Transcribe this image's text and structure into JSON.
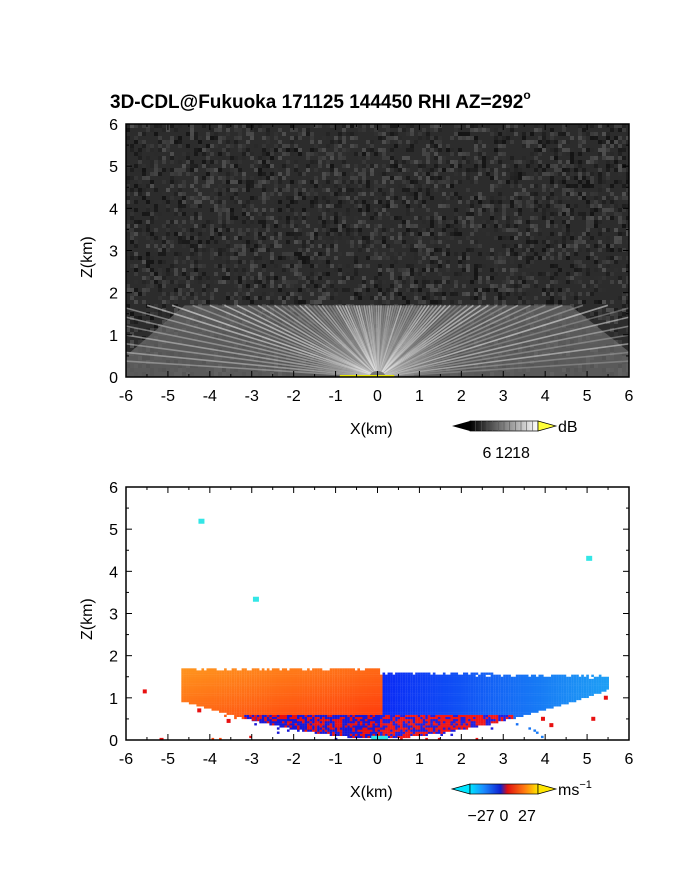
{
  "figure": {
    "title_main": "3D-CDL@Fukuoka 171125 144450 RHI AZ=292",
    "title_sup": "o"
  },
  "chart_data": [
    {
      "type": "heatmap",
      "panel": "reflectivity",
      "xlabel": "X(km)",
      "ylabel": "Z(km)",
      "xlim": [
        -6,
        6
      ],
      "ylim": [
        0,
        6
      ],
      "xticks": [
        "-6",
        "-5",
        "-4",
        "-3",
        "-2",
        "-1",
        "0",
        "1",
        "2",
        "3",
        "4",
        "5",
        "6"
      ],
      "yticks": [
        "0",
        "1",
        "2",
        "3",
        "4",
        "5",
        "6"
      ],
      "background": "noise, dark gray",
      "echo_top_km": 1.7,
      "colorbar": {
        "unit": "dB",
        "ticks": [
          "6",
          "12",
          "18"
        ],
        "range": [
          0,
          24
        ],
        "palette": "grayscale"
      }
    },
    {
      "type": "heatmap",
      "panel": "doppler_velocity",
      "xlabel": "X(km)",
      "ylabel": "Z(km)",
      "xlim": [
        -6,
        6
      ],
      "ylim": [
        0,
        6
      ],
      "xticks": [
        "-6",
        "-5",
        "-4",
        "-3",
        "-2",
        "-1",
        "0",
        "1",
        "2",
        "3",
        "4",
        "5",
        "6"
      ],
      "yticks": [
        "0",
        "1",
        "2",
        "3",
        "4",
        "5",
        "6"
      ],
      "echo_top_km": 1.7,
      "regions": [
        {
          "side": "negative_x",
          "x_range": [
            -4.7,
            0.1
          ],
          "color": "orange-red",
          "meaning": "positive (receding) velocity"
        },
        {
          "side": "positive_x",
          "x_range": [
            0.1,
            5.5
          ],
          "color": "blue",
          "meaning": "negative (approaching) velocity"
        }
      ],
      "isolated_pixels": [
        {
          "x": -4.2,
          "z": 5.2,
          "color": "#33e6e6"
        },
        {
          "x": -2.9,
          "z": 3.35,
          "color": "#33e6e6"
        },
        {
          "x": 5.05,
          "z": 4.32,
          "color": "#33e6e6"
        }
      ],
      "colorbar": {
        "unit_main": "ms",
        "unit_sup": "−1",
        "ticks": [
          "−27",
          "0",
          "27"
        ],
        "range": [
          -40,
          40
        ],
        "palette": "cyan-blue-red-yellow"
      }
    }
  ]
}
